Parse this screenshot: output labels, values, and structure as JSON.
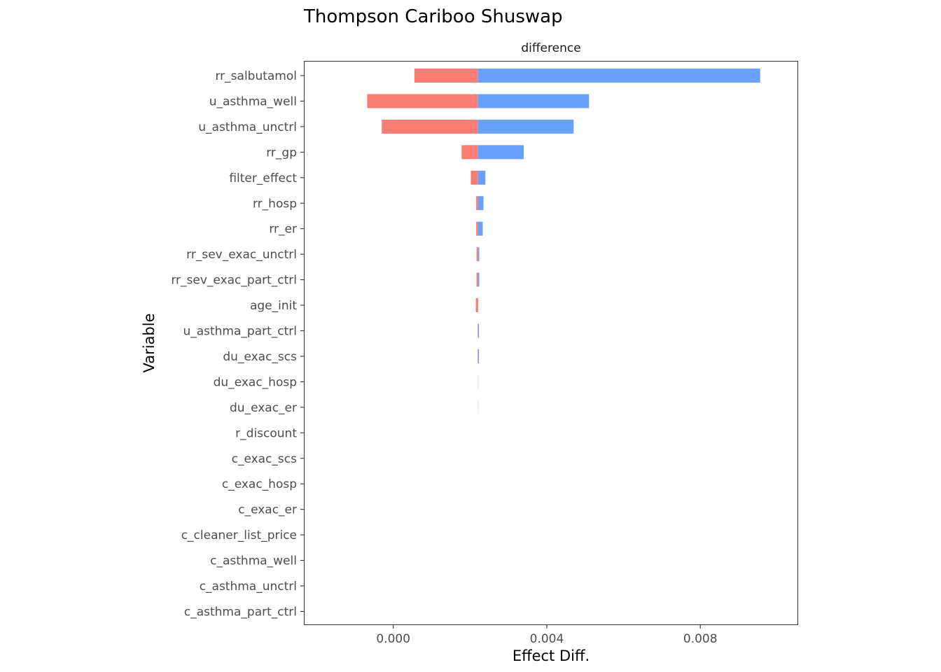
{
  "chart_data": {
    "type": "bar",
    "title": "Thompson Cariboo Shuswap",
    "facet_label": "difference",
    "xlabel": "Effect Diff.",
    "ylabel": "Variable",
    "xlim": [
      -0.00233,
      0.01055
    ],
    "x_ticks": [
      0.0,
      0.004,
      0.008
    ],
    "x_tick_labels": [
      "0.000",
      "0.004",
      "0.008"
    ],
    "baseline": 0.00221,
    "grid": false,
    "legend": "none",
    "colors": {
      "low": "#F8766D",
      "high": "#619CFF",
      "overlap": "#A895D8"
    },
    "categories": [
      "rr_salbutamol",
      "u_asthma_well",
      "u_asthma_unctrl",
      "rr_gp",
      "filter_effect",
      "rr_hosp",
      "rr_er",
      "rr_sev_exac_unctrl",
      "rr_sev_exac_part_ctrl",
      "age_init",
      "u_asthma_part_ctrl",
      "du_exac_scs",
      "du_exac_hosp",
      "du_exac_er",
      "r_discount",
      "c_exac_scs",
      "c_exac_hosp",
      "c_exac_er",
      "c_cleaner_list_price",
      "c_asthma_well",
      "c_asthma_unctrl",
      "c_asthma_part_ctrl"
    ],
    "series": [
      {
        "name": "low",
        "values": [
          0.00055,
          -0.00068,
          -0.0003,
          0.00178,
          0.00202,
          0.00216,
          0.00216,
          0.00217,
          0.00217,
          0.00215,
          0.0022,
          0.0022,
          0.00221,
          0.00221,
          0.00221,
          0.00221,
          0.00221,
          0.00221,
          0.00221,
          0.00221,
          0.00221,
          0.00221
        ]
      },
      {
        "name": "high",
        "values": [
          0.00956,
          0.0051,
          0.0047,
          0.0034,
          0.0024,
          0.00235,
          0.00233,
          0.00224,
          0.00224,
          0.00221,
          0.00223,
          0.00223,
          0.00221,
          0.00221,
          0.00221,
          0.00221,
          0.00221,
          0.00221,
          0.00221,
          0.00221,
          0.00221,
          0.00221
        ]
      }
    ]
  }
}
